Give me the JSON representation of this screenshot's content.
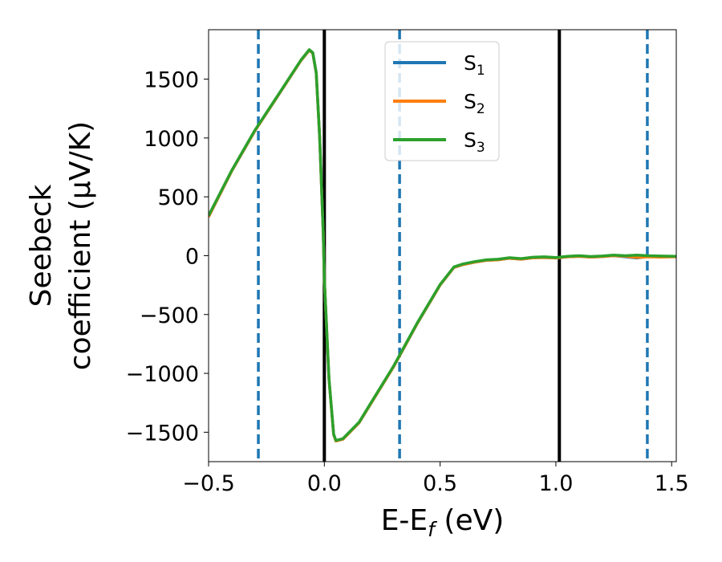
{
  "chart_data": {
    "type": "line",
    "xlabel": "E-E_f (eV)",
    "ylabel_line1": "Seebeck",
    "ylabel_line2": "coefficient  (μV/K)",
    "xlim": [
      -0.5,
      1.52
    ],
    "ylim": [
      -1750,
      1920
    ],
    "xticks": [
      -0.5,
      0.0,
      0.5,
      1.0,
      1.5
    ],
    "xtick_labels": [
      "−0.5",
      "0.0",
      "0.5",
      "1.0",
      "1.5"
    ],
    "yticks": [
      -1500,
      -1000,
      -500,
      0,
      500,
      1000,
      1500
    ],
    "ytick_labels": [
      "−1500",
      "−1000",
      "−500",
      "0",
      "500",
      "1000",
      "1500"
    ],
    "grid": false,
    "legend_position": "top-center",
    "vlines_solid": [
      0.0,
      1.015
    ],
    "vlines_dashed": [
      -0.285,
      0.325,
      1.395
    ],
    "vline_solid_color": "#000000",
    "vline_dashed_color": "#1f77b4",
    "series": [
      {
        "name": "S",
        "sub": "1",
        "color": "#1f77b4",
        "points": [
          [
            -0.5,
            330
          ],
          [
            -0.4,
            720
          ],
          [
            -0.3,
            1060
          ],
          [
            -0.2,
            1360
          ],
          [
            -0.1,
            1660
          ],
          [
            -0.065,
            1745
          ],
          [
            -0.05,
            1720
          ],
          [
            -0.035,
            1550
          ],
          [
            -0.02,
            1000
          ],
          [
            -0.005,
            200
          ],
          [
            0.0,
            -200
          ],
          [
            0.02,
            -1050
          ],
          [
            0.04,
            -1520
          ],
          [
            0.05,
            -1575
          ],
          [
            0.08,
            -1560
          ],
          [
            0.15,
            -1420
          ],
          [
            0.2,
            -1260
          ],
          [
            0.3,
            -940
          ],
          [
            0.4,
            -580
          ],
          [
            0.5,
            -250
          ],
          [
            0.56,
            -100
          ],
          [
            0.6,
            -75
          ],
          [
            0.65,
            -55
          ],
          [
            0.7,
            -40
          ],
          [
            0.75,
            -35
          ],
          [
            0.8,
            -22
          ],
          [
            0.85,
            -30
          ],
          [
            0.9,
            -18
          ],
          [
            0.95,
            -15
          ],
          [
            1.0,
            -20
          ],
          [
            1.05,
            -10
          ],
          [
            1.1,
            -5
          ],
          [
            1.15,
            -12
          ],
          [
            1.2,
            -8
          ],
          [
            1.25,
            0
          ],
          [
            1.3,
            -10
          ],
          [
            1.35,
            -20
          ],
          [
            1.4,
            -5
          ],
          [
            1.45,
            -8
          ],
          [
            1.52,
            -5
          ]
        ]
      },
      {
        "name": "S",
        "sub": "2",
        "color": "#ff7f0e",
        "points": [
          [
            -0.5,
            330
          ],
          [
            -0.4,
            720
          ],
          [
            -0.3,
            1060
          ],
          [
            -0.2,
            1360
          ],
          [
            -0.1,
            1660
          ],
          [
            -0.065,
            1745
          ],
          [
            -0.05,
            1720
          ],
          [
            -0.035,
            1550
          ],
          [
            -0.02,
            1000
          ],
          [
            -0.005,
            200
          ],
          [
            0.0,
            -200
          ],
          [
            0.02,
            -1050
          ],
          [
            0.04,
            -1520
          ],
          [
            0.05,
            -1575
          ],
          [
            0.08,
            -1560
          ],
          [
            0.15,
            -1420
          ],
          [
            0.2,
            -1260
          ],
          [
            0.3,
            -940
          ],
          [
            0.4,
            -580
          ],
          [
            0.5,
            -250
          ],
          [
            0.56,
            -100
          ],
          [
            0.6,
            -75
          ],
          [
            0.65,
            -55
          ],
          [
            0.7,
            -40
          ],
          [
            0.75,
            -35
          ],
          [
            0.8,
            -22
          ],
          [
            0.85,
            -30
          ],
          [
            0.9,
            -18
          ],
          [
            0.95,
            -15
          ],
          [
            1.0,
            -20
          ],
          [
            1.05,
            -10
          ],
          [
            1.1,
            -5
          ],
          [
            1.15,
            -12
          ],
          [
            1.2,
            -8
          ],
          [
            1.25,
            0
          ],
          [
            1.3,
            -5
          ],
          [
            1.35,
            -15
          ],
          [
            1.4,
            -10
          ],
          [
            1.45,
            -12
          ],
          [
            1.52,
            -10
          ]
        ]
      },
      {
        "name": "S",
        "sub": "3",
        "color": "#2ca02c",
        "points": [
          [
            -0.5,
            340
          ],
          [
            -0.4,
            725
          ],
          [
            -0.3,
            1065
          ],
          [
            -0.2,
            1365
          ],
          [
            -0.1,
            1665
          ],
          [
            -0.065,
            1750
          ],
          [
            -0.05,
            1725
          ],
          [
            -0.035,
            1555
          ],
          [
            -0.02,
            1005
          ],
          [
            -0.005,
            205
          ],
          [
            0.0,
            -195
          ],
          [
            0.02,
            -1045
          ],
          [
            0.04,
            -1515
          ],
          [
            0.05,
            -1570
          ],
          [
            0.08,
            -1555
          ],
          [
            0.15,
            -1415
          ],
          [
            0.2,
            -1255
          ],
          [
            0.3,
            -935
          ],
          [
            0.4,
            -575
          ],
          [
            0.5,
            -245
          ],
          [
            0.56,
            -95
          ],
          [
            0.6,
            -70
          ],
          [
            0.65,
            -50
          ],
          [
            0.7,
            -35
          ],
          [
            0.75,
            -30
          ],
          [
            0.8,
            -17
          ],
          [
            0.85,
            -25
          ],
          [
            0.9,
            -13
          ],
          [
            0.95,
            -10
          ],
          [
            1.0,
            -15
          ],
          [
            1.05,
            -5
          ],
          [
            1.1,
            0
          ],
          [
            1.15,
            -7
          ],
          [
            1.2,
            -3
          ],
          [
            1.25,
            5
          ],
          [
            1.3,
            0
          ],
          [
            1.35,
            5
          ],
          [
            1.4,
            0
          ],
          [
            1.45,
            -3
          ],
          [
            1.52,
            -5
          ]
        ]
      }
    ]
  }
}
